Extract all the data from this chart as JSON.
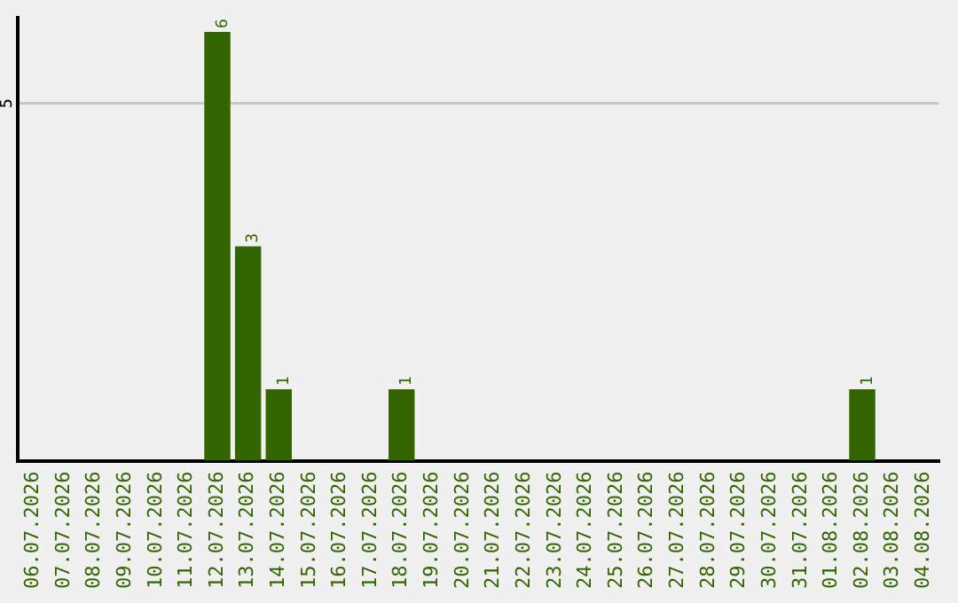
{
  "chart_data": {
    "type": "bar",
    "categories": [
      "06.07.2026",
      "07.07.2026",
      "08.07.2026",
      "09.07.2026",
      "10.07.2026",
      "11.07.2026",
      "12.07.2026",
      "13.07.2026",
      "14.07.2026",
      "15.07.2026",
      "16.07.2026",
      "17.07.2026",
      "18.07.2026",
      "19.07.2026",
      "20.07.2026",
      "21.07.2026",
      "22.07.2026",
      "23.07.2026",
      "24.07.2026",
      "25.07.2026",
      "26.07.2026",
      "27.07.2026",
      "28.07.2026",
      "29.07.2026",
      "30.07.2026",
      "31.07.2026",
      "01.08.2026",
      "02.08.2026",
      "03.08.2026",
      "04.08.2026"
    ],
    "values": [
      0,
      0,
      0,
      0,
      0,
      0,
      6,
      3,
      1,
      0,
      0,
      0,
      1,
      0,
      0,
      0,
      0,
      0,
      0,
      0,
      0,
      0,
      0,
      0,
      0,
      0,
      0,
      1,
      0,
      0
    ],
    "value_labels": [
      null,
      null,
      null,
      null,
      null,
      null,
      "6",
      "3",
      "1",
      null,
      null,
      null,
      "1",
      null,
      null,
      null,
      null,
      null,
      null,
      null,
      null,
      null,
      null,
      null,
      null,
      null,
      null,
      "1",
      null,
      null
    ],
    "color": "#336600",
    "ylim": [
      0,
      6.2
    ],
    "yticks": [
      5
    ],
    "grid": "y",
    "legend": false
  }
}
